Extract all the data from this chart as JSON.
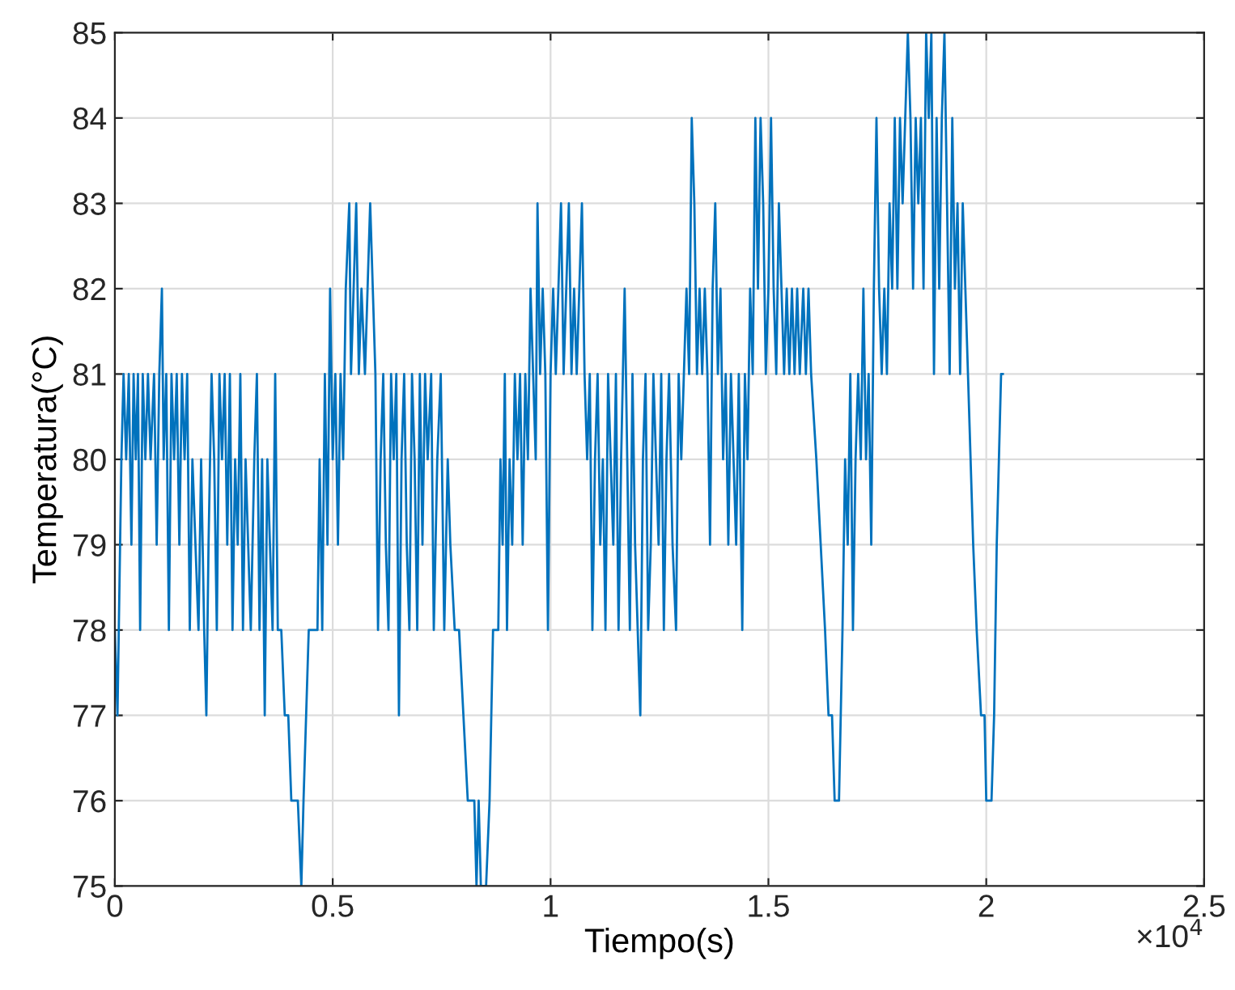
{
  "chart_data": {
    "type": "line",
    "xlabel": "Tiempo(s)",
    "ylabel": "Temperatura(°C)",
    "annotations": [
      "×10$^{4}$"
    ],
    "xlim": [
      0,
      2.5
    ],
    "ylim": [
      75,
      85
    ],
    "xticks": [
      0,
      0.5,
      1,
      1.5,
      2,
      2.5
    ],
    "yticks": [
      75,
      76,
      77,
      78,
      79,
      80,
      81,
      82,
      83,
      84,
      85
    ],
    "grid": true,
    "marker": "none",
    "line_style": "solid",
    "series": [
      {
        "color": "#0072bd",
        "x": [
          0,
          0.006,
          0.015,
          0.02,
          0.026,
          0.032,
          0.038,
          0.043,
          0.048,
          0.053,
          0.058,
          0.064,
          0.07,
          0.076,
          0.082,
          0.09,
          0.096,
          0.102,
          0.108,
          0.112,
          0.118,
          0.124,
          0.13,
          0.136,
          0.142,
          0.148,
          0.154,
          0.16,
          0.166,
          0.172,
          0.178,
          0.185,
          0.192,
          0.198,
          0.205,
          0.21,
          0.215,
          0.222,
          0.228,
          0.234,
          0.24,
          0.246,
          0.252,
          0.258,
          0.264,
          0.27,
          0.276,
          0.282,
          0.288,
          0.294,
          0.3,
          0.306,
          0.312,
          0.32,
          0.326,
          0.332,
          0.338,
          0.344,
          0.35,
          0.356,
          0.362,
          0.368,
          0.374,
          0.382,
          0.39,
          0.398,
          0.405,
          0.42,
          0.428,
          0.433,
          0.445,
          0.465,
          0.47,
          0.476,
          0.482,
          0.488,
          0.494,
          0.5,
          0.506,
          0.512,
          0.518,
          0.524,
          0.53,
          0.538,
          0.542,
          0.548,
          0.554,
          0.56,
          0.566,
          0.574,
          0.58,
          0.586,
          0.592,
          0.598,
          0.604,
          0.61,
          0.616,
          0.622,
          0.628,
          0.634,
          0.64,
          0.646,
          0.652,
          0.658,
          0.664,
          0.67,
          0.676,
          0.682,
          0.688,
          0.694,
          0.7,
          0.706,
          0.712,
          0.718,
          0.726,
          0.732,
          0.74,
          0.748,
          0.756,
          0.764,
          0.77,
          0.78,
          0.79,
          0.8,
          0.81,
          0.825,
          0.83,
          0.835,
          0.84,
          0.852,
          0.86,
          0.868,
          0.88,
          0.885,
          0.89,
          0.895,
          0.9,
          0.906,
          0.912,
          0.918,
          0.924,
          0.93,
          0.936,
          0.942,
          0.948,
          0.954,
          0.96,
          0.966,
          0.97,
          0.976,
          0.982,
          0.988,
          0.994,
          1,
          1.006,
          1.012,
          1.018,
          1.024,
          1.03,
          1.036,
          1.042,
          1.048,
          1.054,
          1.06,
          1.066,
          1.072,
          1.078,
          1.084,
          1.09,
          1.096,
          1.102,
          1.108,
          1.114,
          1.12,
          1.126,
          1.132,
          1.138,
          1.144,
          1.15,
          1.156,
          1.162,
          1.17,
          1.176,
          1.182,
          1.188,
          1.194,
          1.2,
          1.206,
          1.212,
          1.218,
          1.224,
          1.23,
          1.236,
          1.242,
          1.248,
          1.254,
          1.26,
          1.266,
          1.272,
          1.28,
          1.288,
          1.294,
          1.3,
          1.306,
          1.312,
          1.318,
          1.324,
          1.33,
          1.336,
          1.342,
          1.348,
          1.354,
          1.36,
          1.366,
          1.372,
          1.378,
          1.384,
          1.39,
          1.396,
          1.402,
          1.408,
          1.414,
          1.42,
          1.426,
          1.432,
          1.44,
          1.446,
          1.452,
          1.458,
          1.464,
          1.47,
          1.476,
          1.482,
          1.488,
          1.494,
          1.5,
          1.506,
          1.512,
          1.518,
          1.524,
          1.53,
          1.536,
          1.542,
          1.548,
          1.554,
          1.56,
          1.566,
          1.572,
          1.58,
          1.586,
          1.592,
          1.598,
          1.61,
          1.62,
          1.63,
          1.638,
          1.646,
          1.652,
          1.662,
          1.67,
          1.676,
          1.682,
          1.688,
          1.694,
          1.7,
          1.706,
          1.712,
          1.718,
          1.724,
          1.73,
          1.736,
          1.742,
          1.748,
          1.754,
          1.76,
          1.766,
          1.772,
          1.778,
          1.784,
          1.79,
          1.796,
          1.802,
          1.808,
          1.814,
          1.82,
          1.826,
          1.832,
          1.838,
          1.844,
          1.85,
          1.856,
          1.862,
          1.868,
          1.874,
          1.88,
          1.886,
          1.892,
          1.898,
          1.904,
          1.91,
          1.916,
          1.922,
          1.928,
          1.934,
          1.94,
          1.946,
          1.952,
          1.958,
          1.97,
          1.978,
          1.988,
          1.996,
          2,
          2.012,
          2.018,
          2.024,
          2.029,
          2.034,
          2.038
        ],
        "values": [
          78,
          77,
          80,
          81,
          80,
          81,
          79,
          81,
          80,
          81,
          78,
          81,
          80,
          81,
          80,
          81,
          79,
          81,
          82,
          80,
          81,
          78,
          81,
          80,
          81,
          79,
          81,
          80,
          81,
          78,
          80,
          79,
          78,
          80,
          78,
          77,
          79,
          81,
          80,
          78,
          81,
          80,
          81,
          79,
          81,
          78,
          80,
          79,
          81,
          78,
          80,
          79,
          78,
          80,
          81,
          78,
          80,
          77,
          80,
          79,
          78,
          81,
          78,
          78,
          77,
          77,
          76,
          76,
          75,
          76,
          78,
          78,
          80,
          78,
          81,
          79,
          82,
          80,
          81,
          79,
          81,
          80,
          82,
          83,
          81,
          82,
          83,
          81,
          82,
          81,
          82,
          83,
          82,
          81,
          78,
          80,
          81,
          79,
          78,
          81,
          80,
          81,
          77,
          80,
          81,
          79,
          78,
          81,
          80,
          78,
          81,
          79,
          81,
          80,
          81,
          78,
          80,
          81,
          78,
          80,
          79,
          78,
          78,
          77,
          76,
          76,
          75,
          76,
          75,
          75,
          76,
          78,
          78,
          80,
          79,
          81,
          78,
          80,
          79,
          81,
          80,
          81,
          79,
          81,
          80,
          82,
          81,
          80,
          83,
          81,
          82,
          81,
          78,
          81,
          82,
          81,
          82,
          83,
          81,
          82,
          83,
          81,
          82,
          81,
          82,
          83,
          81,
          80,
          81,
          78,
          80,
          81,
          79,
          80,
          78,
          81,
          80,
          79,
          81,
          78,
          80,
          82,
          80,
          78,
          81,
          79,
          78,
          77,
          80,
          81,
          78,
          79,
          81,
          80,
          79,
          81,
          78,
          80,
          81,
          79,
          78,
          81,
          80,
          81,
          82,
          81,
          84,
          83,
          81,
          82,
          81,
          82,
          81,
          79,
          82,
          83,
          81,
          82,
          80,
          81,
          79,
          81,
          80,
          79,
          81,
          78,
          81,
          80,
          82,
          81,
          84,
          82,
          84,
          83,
          81,
          82,
          84,
          82,
          81,
          83,
          82,
          81,
          82,
          81,
          82,
          81,
          82,
          81,
          82,
          81,
          82,
          81,
          80,
          79,
          78,
          77,
          77,
          76,
          76,
          78,
          80,
          79,
          81,
          78,
          80,
          81,
          80,
          82,
          80,
          81,
          79,
          82,
          84,
          82,
          81,
          82,
          81,
          83,
          82,
          84,
          82,
          84,
          83,
          84,
          85,
          84,
          82,
          84,
          83,
          84,
          82,
          85,
          84,
          85,
          81,
          84,
          82,
          84,
          85,
          83,
          81,
          84,
          82,
          83,
          81,
          83,
          82,
          81,
          79,
          78,
          77,
          77,
          76,
          76,
          77,
          79,
          80,
          81,
          81
        ]
      }
    ]
  }
}
